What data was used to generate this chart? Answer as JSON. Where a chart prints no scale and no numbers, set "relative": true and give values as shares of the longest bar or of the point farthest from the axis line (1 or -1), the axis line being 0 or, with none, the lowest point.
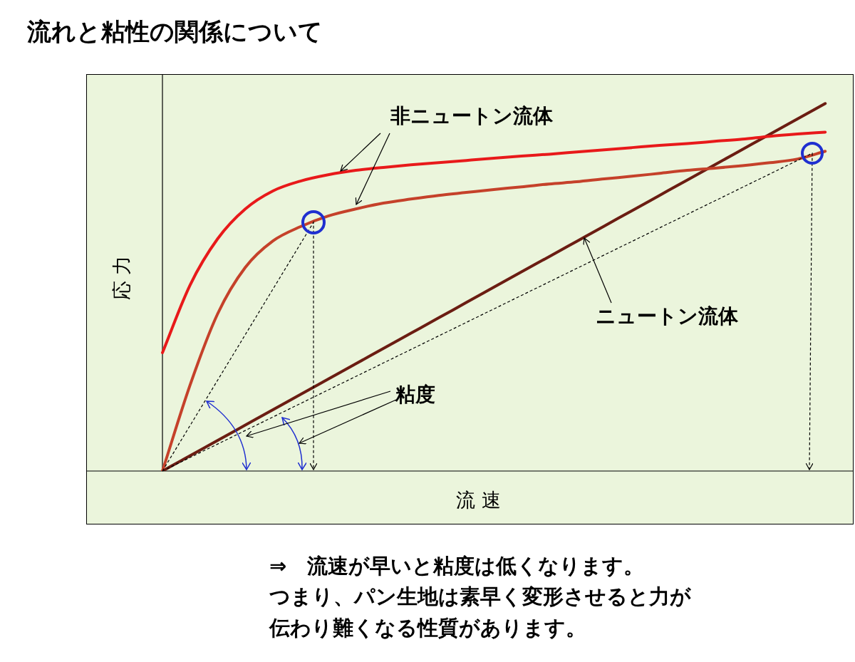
{
  "chart_data": {
    "type": "line",
    "title": "流れと粘性の関係について",
    "xlabel": "流 速",
    "ylabel": "応 力",
    "relative": true,
    "legend": false,
    "marker": "none",
    "line_style": "solid",
    "categories": [
      null,
      null,
      null,
      null,
      null,
      null,
      null,
      null,
      null,
      null,
      null,
      null,
      null,
      null,
      null,
      null,
      null,
      null,
      null,
      null,
      null,
      null,
      null,
      null,
      null,
      null
    ],
    "series": [
      {
        "color": "#e8191a",
        "values": [
          0.322,
          0.506,
          0.632,
          0.713,
          0.762,
          0.789,
          0.806,
          0.818,
          0.826,
          0.833,
          0.839,
          0.845,
          0.851,
          0.857,
          0.862,
          0.868,
          0.874,
          0.88,
          0.886,
          0.891,
          0.897,
          0.903,
          0.911,
          0.917,
          0.922,
          null
        ]
      },
      {
        "color": "#c5412a",
        "values": [
          0,
          0.234,
          0.428,
          0.554,
          0.626,
          0.665,
          0.694,
          0.713,
          0.729,
          0.74,
          0.75,
          0.758,
          0.766,
          0.773,
          0.781,
          0.787,
          0.795,
          0.802,
          0.81,
          0.818,
          0.824,
          0.831,
          0.839,
          0.849,
          0.87,
          null
        ]
      },
      {
        "color": "#6b1d12",
        "values": [
          0,
          0.0417,
          0.0833,
          0.125,
          0.1667,
          0.2083,
          0.25,
          0.2917,
          0.3333,
          0.375,
          0.4167,
          0.4583,
          0.5,
          0.5417,
          0.5833,
          0.625,
          0.6667,
          0.7083,
          0.75,
          0.7917,
          0.8333,
          0.875,
          0.9167,
          0.9583,
          1,
          null
        ]
      }
    ],
    "annotations": [
      "非ニュートン流体",
      "ニュートン流体",
      "粘度",
      "⇒　流速が早いと粘度は低くなります。",
      "つまり、パン生地は素早く変形させると力が",
      "伝わり難くなる性質があります。"
    ]
  }
}
